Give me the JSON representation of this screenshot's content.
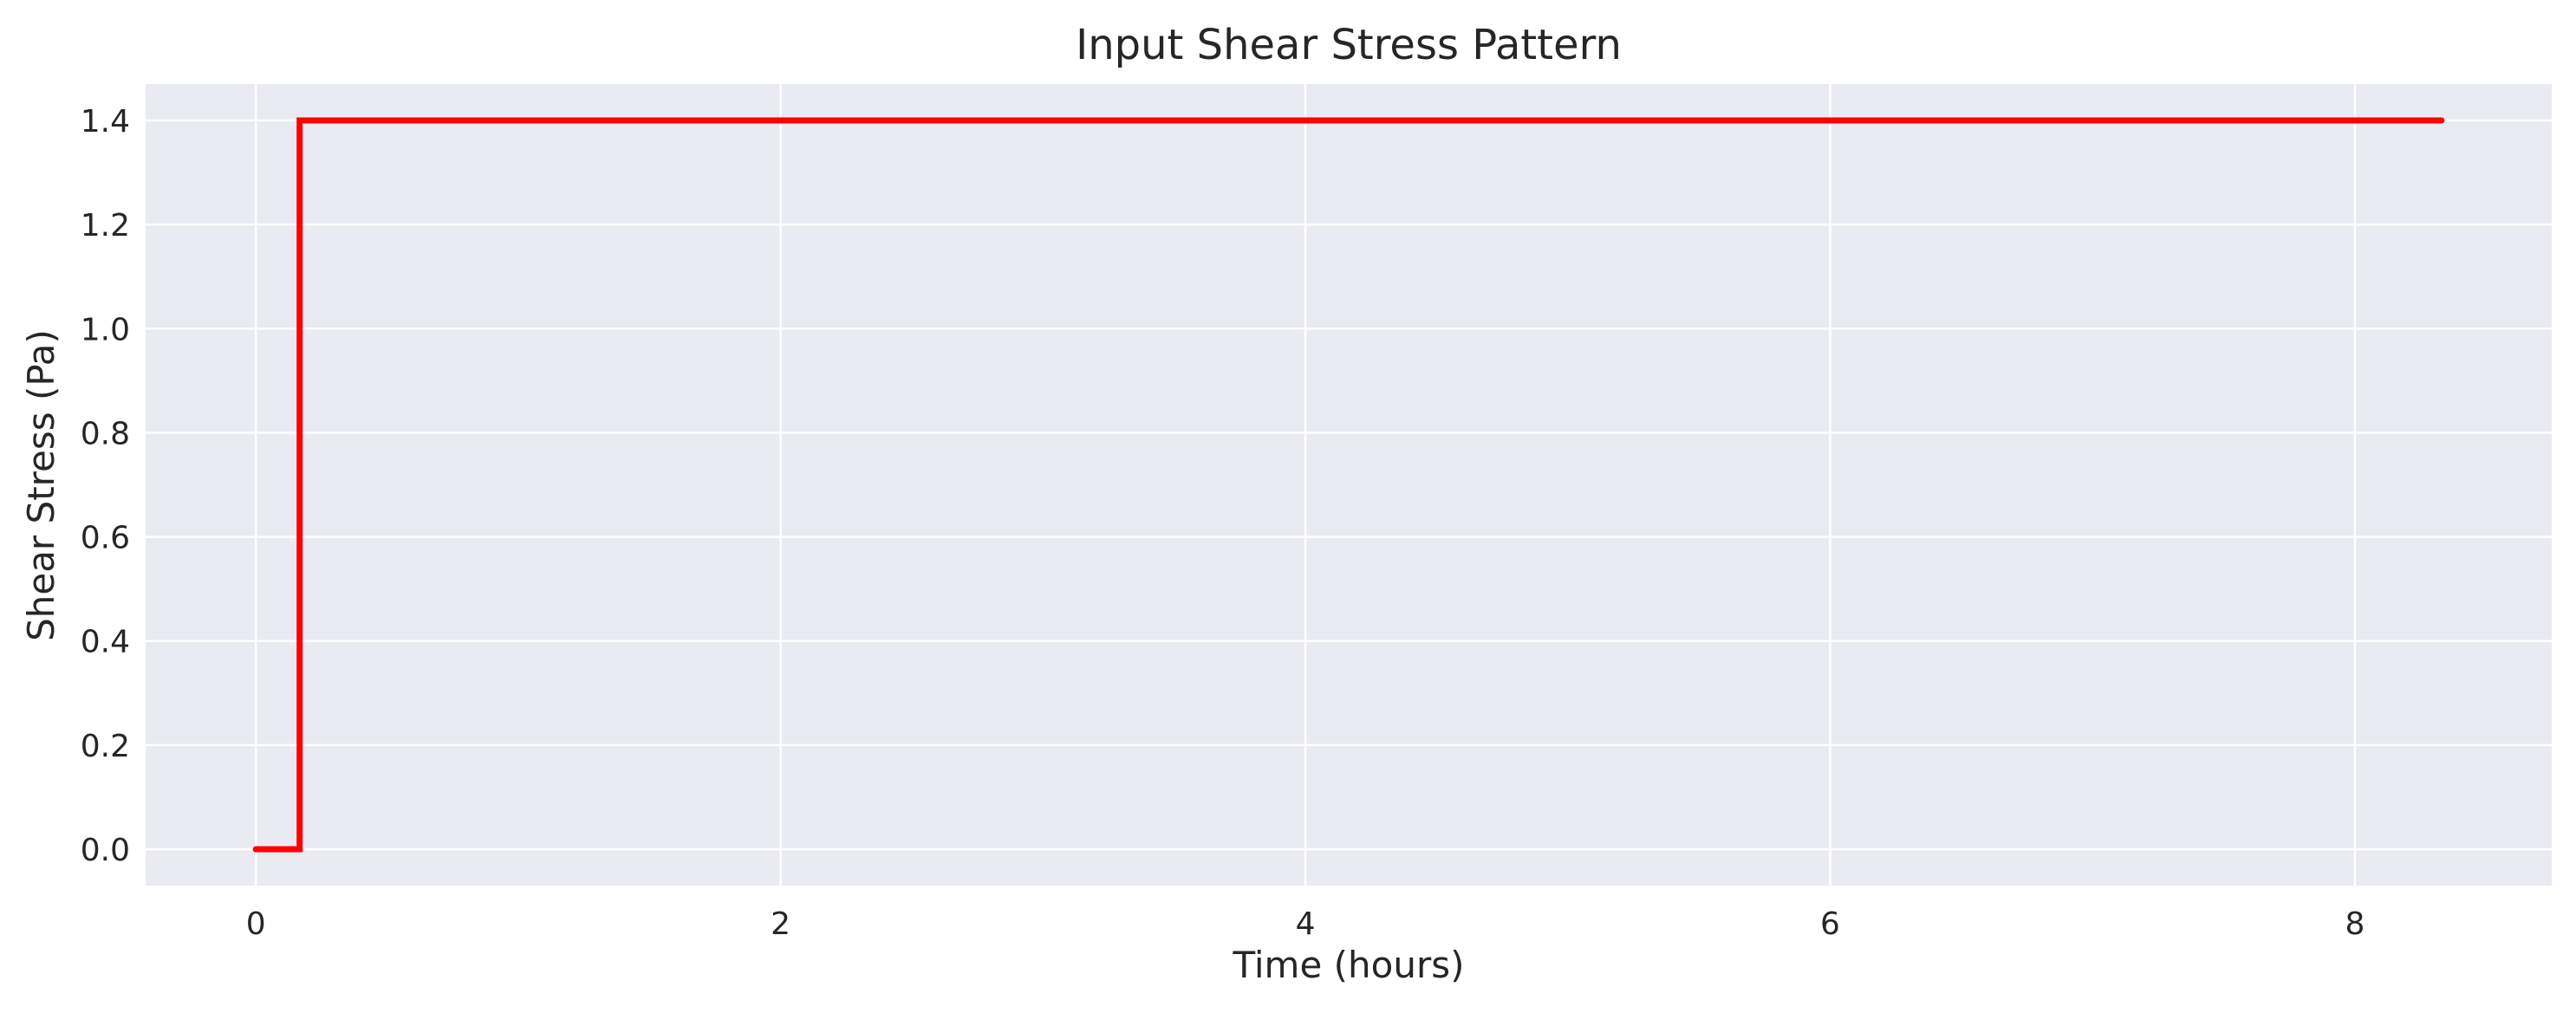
{
  "chart_data": {
    "type": "line",
    "title": "Input Shear Stress Pattern",
    "xlabel": "Time (hours)",
    "ylabel": "Shear Stress (Pa)",
    "xlim": [
      -0.42,
      8.75
    ],
    "ylim": [
      -0.07,
      1.47
    ],
    "xticks": [
      0,
      2,
      4,
      6,
      8
    ],
    "xtick_labels": [
      "0",
      "2",
      "4",
      "6",
      "8"
    ],
    "yticks": [
      0.0,
      0.2,
      0.4,
      0.6,
      0.8,
      1.0,
      1.2,
      1.4
    ],
    "ytick_labels": [
      "0.0",
      "0.2",
      "0.4",
      "0.6",
      "0.8",
      "1.0",
      "1.2",
      "1.4"
    ],
    "grid": true,
    "colors": {
      "background": "#eaeaf2",
      "grid": "#ffffff",
      "line": "#ff0000"
    },
    "series": [
      {
        "x": [
          0,
          0.167,
          0.167,
          8.33
        ],
        "y": [
          0,
          0,
          1.4,
          1.4
        ],
        "step": true
      }
    ]
  }
}
